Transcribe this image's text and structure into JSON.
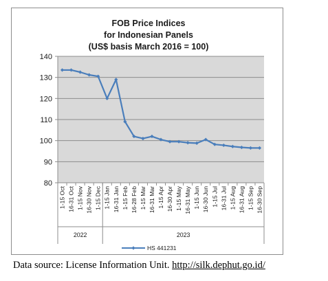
{
  "colors": {
    "series": "#4a7ebb",
    "plot_background": "#d9d9d9",
    "gridline": "#8c8c8c",
    "frame_border": "#8c8c8c"
  },
  "chart_data": {
    "type": "line",
    "title_lines": [
      "FOB Price Indices",
      "for Indonesian Panels",
      "(US$ basis March 2016 = 100)"
    ],
    "xlabel": "",
    "ylabel": "",
    "ylim": [
      80,
      140
    ],
    "yticks": [
      80,
      90,
      100,
      110,
      120,
      130,
      140
    ],
    "grid": true,
    "legend": "bottom",
    "categories": [
      "1-15 Oct",
      "16-31 Oct",
      "1-15 Nov",
      "16-30 Nov",
      "1-15 Dec",
      "1-15 Jan",
      "16-31 Jan",
      "1-15 Feb",
      "16-28 Feb",
      "1-15 Mar",
      "16-31 Mar",
      "1-15 Apr",
      "16-30 Apr",
      "1-15 May",
      "16-31 May",
      "1-15 Jun",
      "16-30 Jun",
      "1-15 Jul",
      "16-31 Jul",
      "1-15 Aug",
      "16-31 Aug",
      "1-15 Sep",
      "16-30 Sep"
    ],
    "groups": [
      {
        "label": "2022",
        "start": 0,
        "end": 4
      },
      {
        "label": "2023",
        "start": 5,
        "end": 22
      }
    ],
    "series": [
      {
        "name": "HS 441231",
        "values": [
          133.5,
          133.5,
          132.5,
          131.2,
          130.5,
          120,
          129,
          109,
          102,
          101,
          102,
          100.5,
          99.5,
          99.5,
          99,
          98.8,
          100.5,
          98.2,
          97.8,
          97.2,
          96.8,
          96.5,
          96.5
        ]
      }
    ]
  },
  "source": {
    "text": "Data source: License Information Unit. ",
    "link": "http://silk.dephut.go.id/"
  }
}
